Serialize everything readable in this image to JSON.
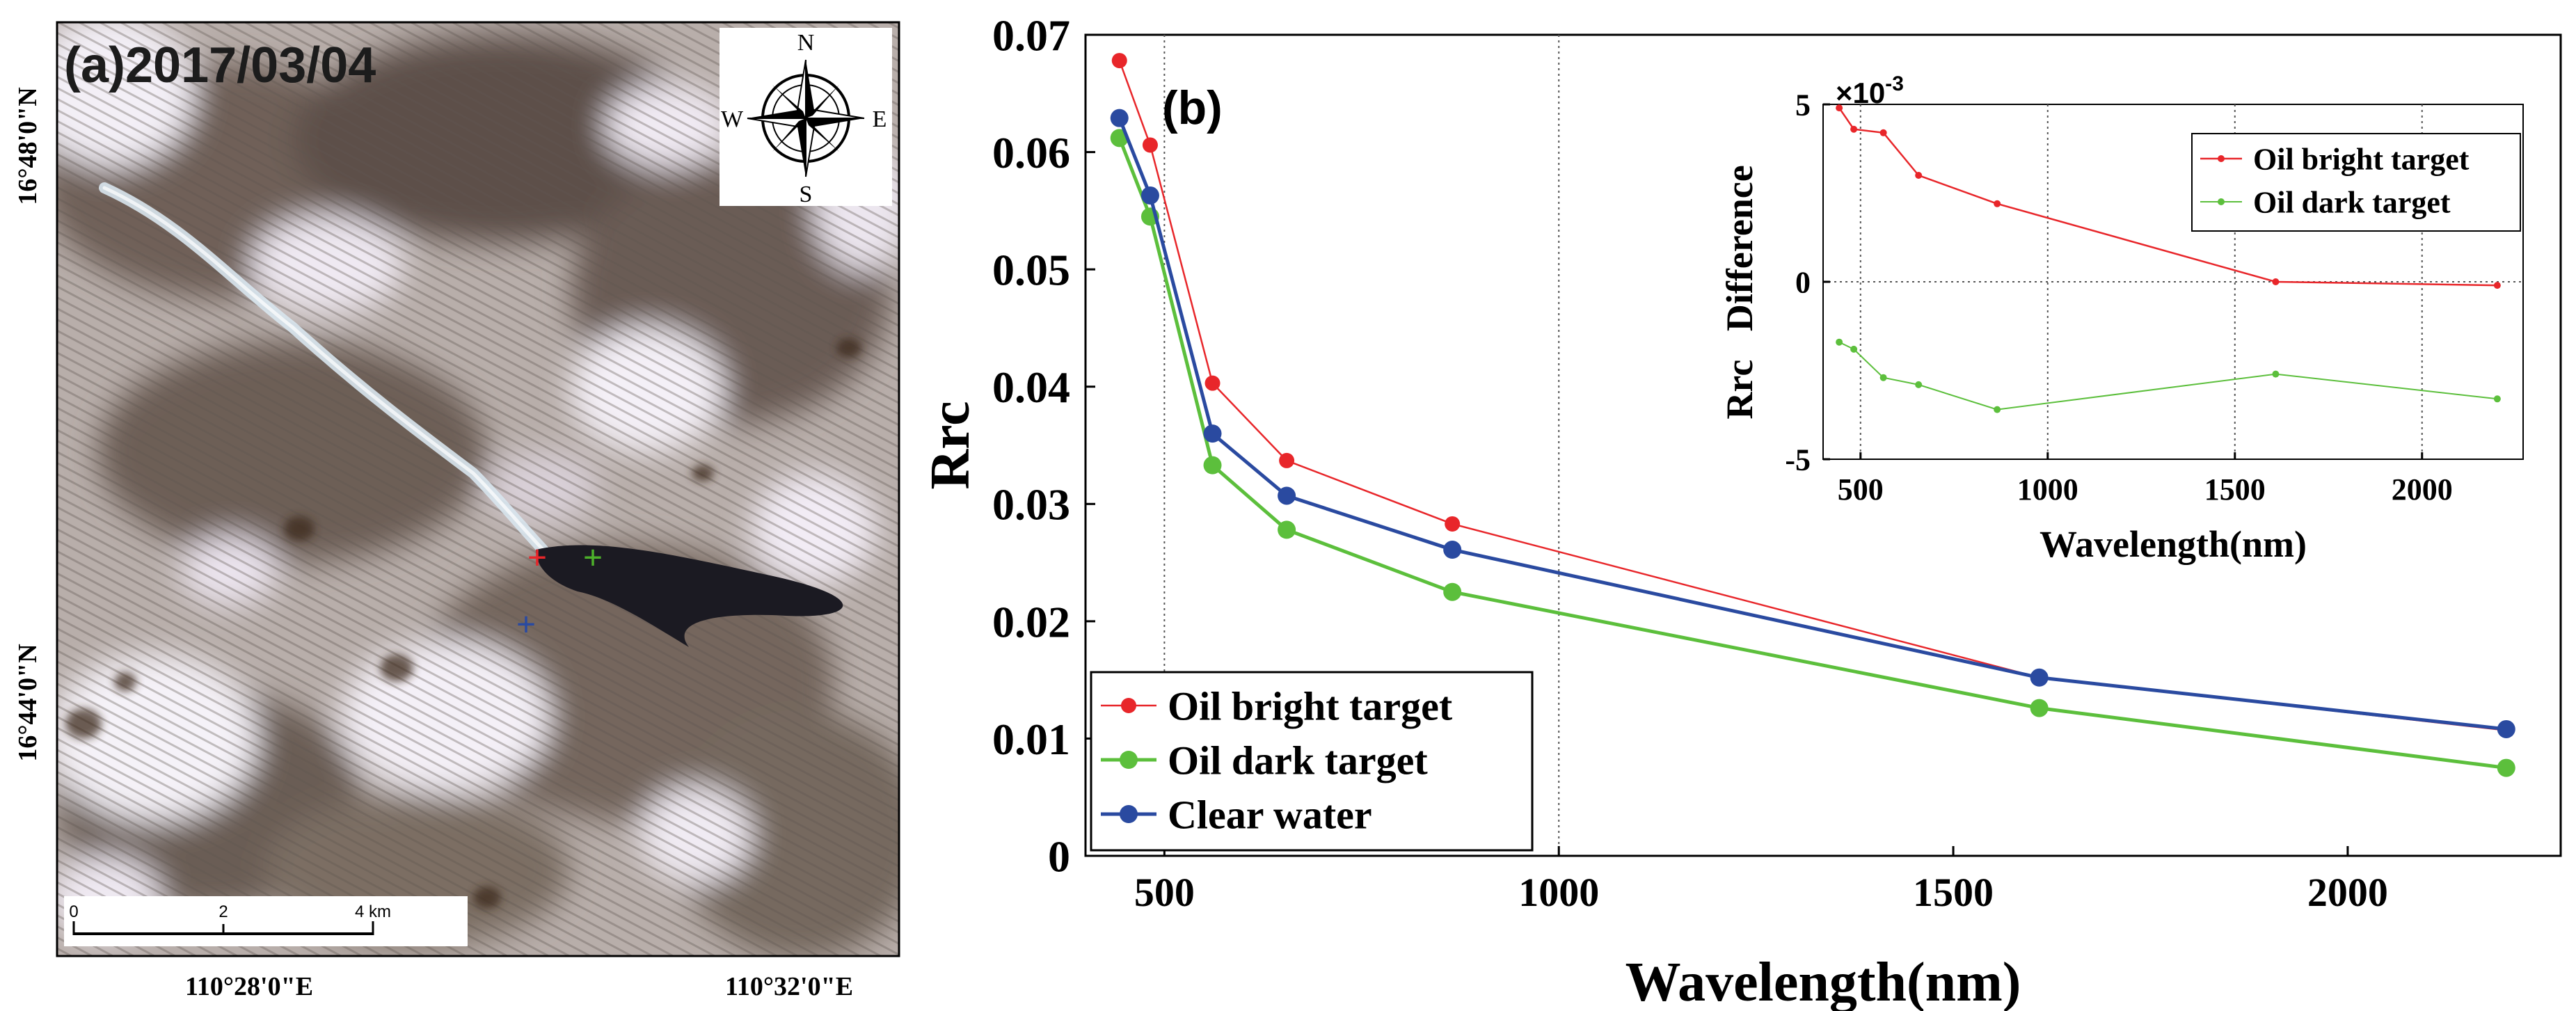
{
  "panel_a": {
    "title": "(a)2017/03/04",
    "lat_labels": [
      "16°48'0\"N",
      "16°44'0\"N"
    ],
    "lon_labels": [
      "110°28'0\"E",
      "110°32'0\"E"
    ],
    "compass": {
      "n": "N",
      "s": "S",
      "e": "E",
      "w": "W"
    },
    "scale_bar": {
      "ticks": [
        "0",
        "2",
        "4 km"
      ]
    },
    "markers": [
      {
        "name": "oil-bright-marker",
        "symbol": "+",
        "color": "#e8262a"
      },
      {
        "name": "oil-dark-marker",
        "symbol": "+",
        "color": "#4caf2a"
      },
      {
        "name": "clear-water-marker",
        "symbol": "+",
        "color": "#2a4aa0"
      }
    ],
    "colors": {
      "sea_light": "#c9c2c4",
      "sea_dark": "#7c7068",
      "cloud": "#f4f0f6",
      "slick": "#1b1a22",
      "sheen": "#cfe0ea"
    }
  },
  "chart_data": [
    {
      "type": "line",
      "panel_label": "(b)",
      "xlabel": "Wavelength(nm)",
      "ylabel": "Rrc",
      "xlim": [
        400,
        2270
      ],
      "ylim": [
        0,
        0.07
      ],
      "xticks": [
        500,
        1000,
        1500,
        2000
      ],
      "yticks": [
        0,
        0.01,
        0.02,
        0.03,
        0.04,
        0.05,
        0.06,
        0.07
      ],
      "ytick_labels": [
        "0",
        "0.01",
        "0.02",
        "0.03",
        "0.04",
        "0.05",
        "0.06",
        "0.07"
      ],
      "vlines": [
        500,
        1000
      ],
      "legend_position": "bottom-left",
      "series": [
        {
          "name": "Oil bright target",
          "color": "#e8262a",
          "x": [
            443,
            482,
            561,
            655,
            865,
            1609,
            2201
          ],
          "y": [
            0.0678,
            0.0606,
            0.0403,
            0.0337,
            0.0283,
            0.0152,
            0.0107
          ]
        },
        {
          "name": "Oil dark target",
          "color": "#5cbf3c",
          "x": [
            443,
            482,
            561,
            655,
            865,
            1609,
            2201
          ],
          "y": [
            0.0612,
            0.0545,
            0.0333,
            0.0278,
            0.0225,
            0.0126,
            0.0075
          ]
        },
        {
          "name": "Clear water",
          "color": "#2a4aa0",
          "x": [
            443,
            482,
            561,
            655,
            865,
            1609,
            2201
          ],
          "y": [
            0.0629,
            0.0563,
            0.036,
            0.0307,
            0.0261,
            0.0152,
            0.0108
          ]
        }
      ]
    },
    {
      "type": "line",
      "inset": true,
      "xlabel": "Wavelength(nm)",
      "ylabel": "Rrc   Difference",
      "exponent_label": "×10",
      "exponent_power": "-3",
      "scale": 0.001,
      "xlim": [
        400,
        2270
      ],
      "ylim": [
        -5,
        5
      ],
      "xticks": [
        500,
        1000,
        1500,
        2000
      ],
      "yticks": [
        -5,
        0,
        5
      ],
      "ytick_labels": [
        "-5",
        "0",
        "5"
      ],
      "vlines": [
        500,
        1000,
        1500,
        2000
      ],
      "hlines": [
        0
      ],
      "legend_position": "top-right",
      "series": [
        {
          "name": "Oil bright target",
          "color": "#e8262a",
          "x": [
            443,
            482,
            561,
            655,
            865,
            1609,
            2201
          ],
          "y": [
            4.9,
            4.3,
            4.2,
            3.0,
            2.2,
            0.0,
            -0.1
          ]
        },
        {
          "name": "Oil dark target",
          "color": "#5cbf3c",
          "x": [
            443,
            482,
            561,
            655,
            865,
            1609,
            2201
          ],
          "y": [
            -1.7,
            -1.9,
            -2.7,
            -2.9,
            -3.6,
            -2.6,
            -3.3
          ]
        }
      ]
    }
  ]
}
